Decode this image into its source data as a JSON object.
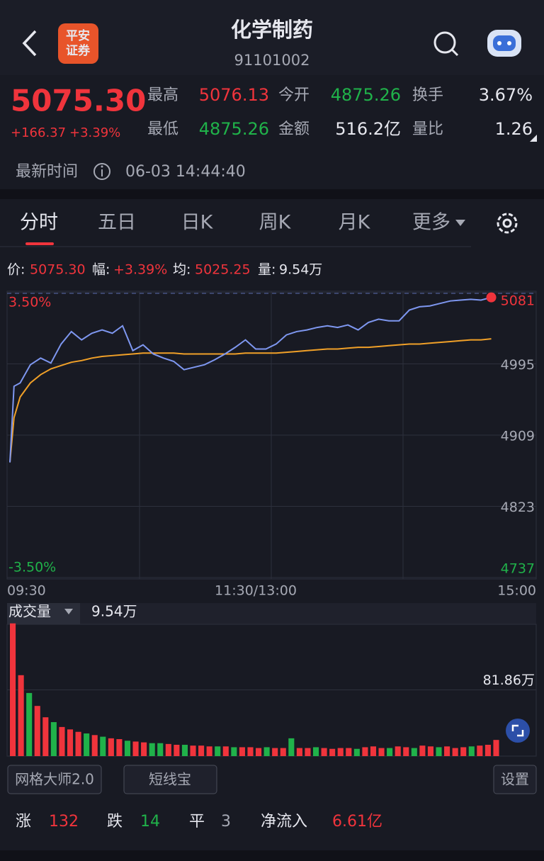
{
  "header": {
    "title": "化学制药",
    "code": "91101002",
    "brand": [
      "平安",
      "证券"
    ]
  },
  "quote": {
    "price": "5075.30",
    "change": "+166.37",
    "change_pct": "+3.39%"
  },
  "stats": [
    {
      "label": "最高",
      "value": "5076.13"
    },
    {
      "label": "今开",
      "value": "4875.26"
    },
    {
      "label": "换手",
      "value": "3.67%"
    },
    {
      "label": "最低",
      "value": "4875.26"
    },
    {
      "label": "金额",
      "value": "516.2亿"
    },
    {
      "label": "量比",
      "value": "1.26"
    }
  ],
  "update": {
    "label": "最新时间",
    "value": "06-03 14:44:40"
  },
  "tabs": [
    "分时",
    "五日",
    "日K",
    "周K",
    "月K",
    "更多"
  ],
  "summary": [
    {
      "label": "价:",
      "value": "5075.30"
    },
    {
      "label": "幅:",
      "value": "+3.39%"
    },
    {
      "label": "均:",
      "value": "5025.25"
    },
    {
      "label": "量:",
      "value": "9.54万"
    }
  ],
  "chart_data": [
    {
      "type": "line",
      "x": [
        0,
        2,
        5,
        10,
        15,
        20,
        25,
        30,
        35,
        40,
        45,
        50,
        55,
        60,
        65,
        70,
        75,
        80,
        85,
        90,
        95,
        100,
        105,
        110,
        115,
        120,
        125,
        130,
        135,
        140,
        145,
        150,
        155,
        160,
        165,
        170,
        175,
        180,
        185,
        190,
        195,
        200,
        205,
        210,
        215,
        220,
        225,
        230,
        235
      ],
      "xlim": [
        0,
        240
      ],
      "xticks": [
        {
          "value": 0,
          "label": "09:30"
        },
        {
          "value": 120,
          "label": "11:30/13:00"
        },
        {
          "value": 240,
          "label": "15:00"
        }
      ],
      "ylim": [
        4737,
        5081
      ],
      "yticks": [
        5081,
        4995,
        4909,
        4823,
        4737
      ],
      "y2lim": [
        -3.5,
        3.5
      ],
      "y2ticks": [
        {
          "value": 3.5,
          "label": "3.50%"
        },
        {
          "value": -3.5,
          "label": "-3.50%"
        }
      ],
      "grid": true,
      "series": [
        {
          "color": "#7e97f0",
          "values": [
            4876,
            4968,
            4972,
            4994,
            5002,
            4996,
            5019,
            5034,
            5024,
            5032,
            5036,
            5032,
            5041,
            5011,
            5018,
            5007,
            5002,
            4998,
            4988,
            4991,
            4994,
            5000,
            5007,
            5015,
            5024,
            5013,
            5013,
            5019,
            5030,
            5034,
            5036,
            5039,
            5041,
            5039,
            5042,
            5036,
            5045,
            5049,
            5047,
            5047,
            5060,
            5064,
            5065,
            5068,
            5071,
            5072,
            5073,
            5072,
            5075.3
          ]
        },
        {
          "color": "#f0a028",
          "values": [
            4876,
            4930,
            4955,
            4972,
            4982,
            4989,
            4993,
            4997,
            4999,
            5002,
            5004,
            5005,
            5006,
            5007,
            5008,
            5008,
            5008,
            5008,
            5007,
            5007,
            5007,
            5007,
            5007,
            5007,
            5008,
            5008,
            5008,
            5008,
            5009,
            5010,
            5011,
            5012,
            5013,
            5013,
            5014,
            5015,
            5015,
            5016,
            5017,
            5018,
            5019,
            5019,
            5020,
            5021,
            5022,
            5023,
            5024,
            5024,
            5025.25
          ]
        }
      ]
    },
    {
      "type": "bar",
      "indicator": "成交量",
      "current_value": "9.54万",
      "x": [
        0,
        4,
        8,
        12,
        16,
        20,
        24,
        28,
        32,
        36,
        40,
        44,
        48,
        52,
        56,
        60,
        64,
        68,
        72,
        76,
        80,
        84,
        88,
        92,
        96,
        100,
        104,
        108,
        112,
        116,
        120,
        124,
        128,
        132,
        136,
        140,
        144,
        148,
        152,
        156,
        160,
        164,
        168,
        172,
        176,
        180,
        184,
        188,
        192,
        196,
        200,
        204,
        208,
        212,
        216,
        220,
        224,
        228,
        232,
        236
      ],
      "xlim": [
        0,
        240
      ],
      "values": [
        164,
        100,
        78,
        62,
        48,
        42,
        36,
        33,
        30,
        28,
        26,
        24,
        22,
        21,
        19,
        18,
        17,
        16,
        16,
        15,
        14,
        14,
        13,
        13,
        12,
        12,
        12,
        11,
        11,
        11,
        10,
        11,
        10,
        10,
        22,
        10,
        10,
        11,
        10,
        9,
        10,
        10,
        9,
        11,
        12,
        10,
        10,
        12,
        11,
        10,
        13,
        12,
        11,
        12,
        10,
        11,
        12,
        13,
        14,
        20
      ],
      "colors": [
        "#f0343c",
        "#f0343c",
        "#20b24a",
        "#f0343c",
        "#f0343c",
        "#20b24a",
        "#f0343c",
        "#f0343c",
        "#f0343c",
        "#20b24a",
        "#f0343c",
        "#20b24a",
        "#f0343c",
        "#f0343c",
        "#20b24a",
        "#f0343c",
        "#f0343c",
        "#20b24a",
        "#20b24a",
        "#f0343c",
        "#f0343c",
        "#20b24a",
        "#f0343c",
        "#f0343c",
        "#f0343c",
        "#20b24a",
        "#f0343c",
        "#20b24a",
        "#f0343c",
        "#f0343c",
        "#f0343c",
        "#20b24a",
        "#f0343c",
        "#f0343c",
        "#20b24a",
        "#f0343c",
        "#f0343c",
        "#20b24a",
        "#f0343c",
        "#f0343c",
        "#f0343c",
        "#f0343c",
        "#20b24a",
        "#f0343c",
        "#f0343c",
        "#f0343c",
        "#20b24a",
        "#f0343c",
        "#f0343c",
        "#20b24a",
        "#f0343c",
        "#f0343c",
        "#20b24a",
        "#f0343c",
        "#f0343c",
        "#f0343c",
        "#20b24a",
        "#f0343c",
        "#f0343c",
        "#f0343c"
      ],
      "ylim": [
        0,
        163.72
      ],
      "yticks": [
        {
          "value": 81.86,
          "label": "81.86万"
        }
      ]
    }
  ],
  "buttons": [
    "网格大师2.0",
    "短线宝",
    "设置"
  ],
  "breadth": [
    {
      "label": "涨",
      "value": "132"
    },
    {
      "label": "跌",
      "value": "14"
    },
    {
      "label": "平",
      "value": "3"
    },
    {
      "label": "净流入",
      "value": "6.61亿"
    }
  ]
}
